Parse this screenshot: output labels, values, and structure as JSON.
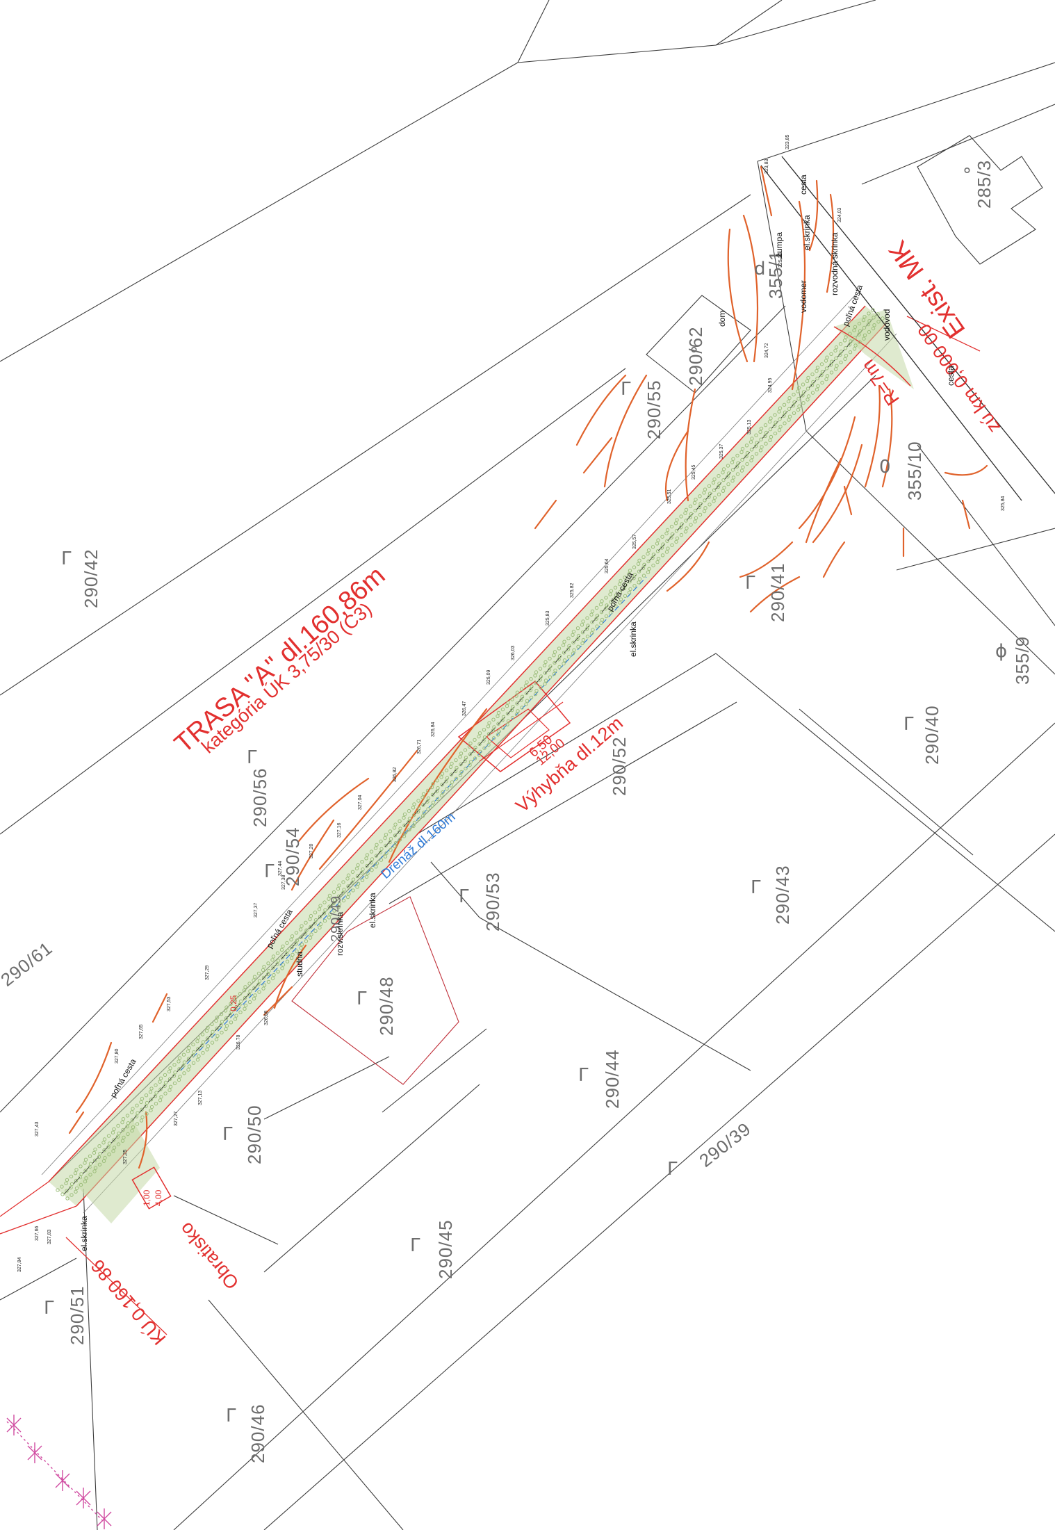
{
  "title": {
    "line1": "TRASA \"A\" dl.160,86m",
    "line2": "kategória ÚK 3,75/30 (C3)"
  },
  "labels": {
    "exist": "Exist. MK",
    "start": "zú km 0,000 00",
    "end": "KÚ 0,160 86",
    "radius": "R=7m",
    "turnaround": "Obratisko",
    "passing": "Výhybňa dl.12m",
    "drainage": "Drenáž dl.160m",
    "dim_650": "6,50",
    "dim_1200": "12,00",
    "dim_100": "1,00",
    "dim_400": "4,00",
    "dim_025": "0,25"
  },
  "features": {
    "polna_cesta": "poľná cesta",
    "el_skrinka": "el.skrinka",
    "rozv_skrinka": "rozvodná skrinka",
    "rozv_skr_short": "rozv.skrinka",
    "vodomer": "vodomer",
    "vodovod": "vodovod",
    "zumpa": "žumpa",
    "cesta": "cesta",
    "studna": "studňa",
    "dom": "dom"
  },
  "parcels": [
    "290/42",
    "290/61",
    "290/56",
    "290/54",
    "290/55",
    "290/62",
    "355/1",
    "285/3",
    "355/10",
    "355/9",
    "290/41",
    "290/40",
    "290/52",
    "290/53",
    "290/43",
    "290/48",
    "290/44",
    "290/39",
    "290/50",
    "290/45",
    "290/51",
    "290/46",
    "290/49"
  ],
  "spot_heights": [
    "323,85",
    "323,83",
    "324,03",
    "325,27",
    "325,13",
    "325,45",
    "325,37",
    "325,51",
    "325,57",
    "325,64",
    "325,82",
    "325,83",
    "326,03",
    "326,09",
    "326,47",
    "326,71",
    "326,84",
    "326,82",
    "327,04",
    "327,16",
    "327,20",
    "327,37",
    "327,38",
    "327,44",
    "327,53",
    "327,80",
    "327,65",
    "327,29",
    "327,27",
    "327,13",
    "327,25",
    "327,43",
    "327,66",
    "327,83",
    "327,84",
    "326,58",
    "326,78",
    "324,72",
    "324,95",
    "325,84"
  ],
  "colors": {
    "road_border": "#e2302f",
    "contours": "#e0622b",
    "cadastre": "#3c3c3c",
    "drainage": "#2f7bd8",
    "fence": "#d04aa0",
    "paving": "#9bbd7a"
  }
}
